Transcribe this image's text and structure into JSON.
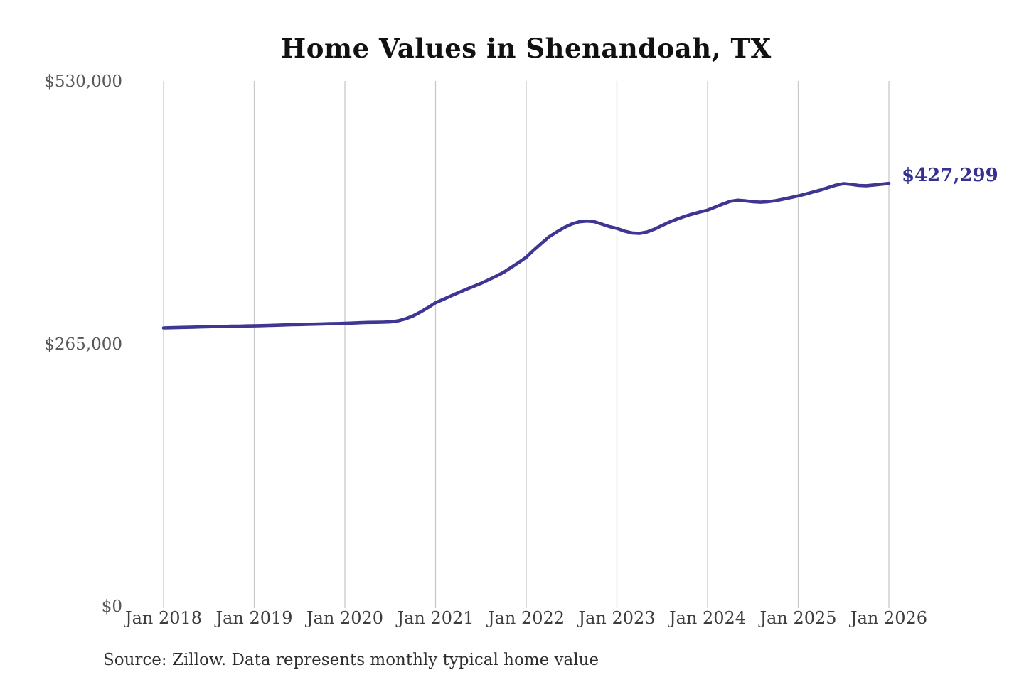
{
  "title": "Home Values in Shenandoah, TX",
  "source_note": "Source: Zillow. Data represents monthly typical home value",
  "end_label": "$427,299",
  "colors": {
    "background": "#ffffff",
    "line": "#3e3692",
    "end_label": "#363190",
    "grid": "#c9c9c9",
    "title_text": "#111111",
    "y_axis_text": "#575757",
    "x_axis_text": "#3d3d3d",
    "source_text": "#2e2e2e"
  },
  "chart_data": {
    "type": "line",
    "title": "Home Values in Shenandoah, TX",
    "xlabel": "",
    "ylabel": "",
    "ylim": [
      0,
      530000
    ],
    "grid": "vertical-only",
    "legend": "none",
    "x_tick_labels": [
      "Jan 2018",
      "Jan 2019",
      "Jan 2020",
      "Jan 2021",
      "Jan 2022",
      "Jan 2023",
      "Jan 2024",
      "Jan 2025",
      "Jan 2026"
    ],
    "y_ticks": [
      {
        "value": 0,
        "label": "$0"
      },
      {
        "value": 265000,
        "label": "$265,000"
      },
      {
        "value": 530000,
        "label": "$530,000"
      }
    ],
    "series_name": "Monthly typical home value",
    "x_start": "2018-01",
    "x_end": "2026-01",
    "x_step": "1 month",
    "values": [
      281500,
      281700,
      281900,
      282100,
      282300,
      282500,
      282700,
      282900,
      283000,
      283200,
      283300,
      283500,
      283600,
      283800,
      284000,
      284200,
      284500,
      284700,
      284900,
      285100,
      285300,
      285500,
      285700,
      285900,
      286100,
      286400,
      286700,
      287000,
      287100,
      287200,
      287500,
      288500,
      290500,
      293500,
      297500,
      302000,
      306900,
      310200,
      313600,
      317000,
      320200,
      323300,
      326400,
      330000,
      333600,
      337500,
      342500,
      347500,
      352800,
      360000,
      366800,
      373300,
      378200,
      382600,
      386300,
      388600,
      389300,
      388700,
      386200,
      383700,
      381900,
      379200,
      377300,
      376900,
      378300,
      381200,
      384900,
      388400,
      391400,
      394100,
      396400,
      398500,
      400300,
      403400,
      406400,
      409200,
      410400,
      409700,
      408800,
      408400,
      408900,
      409900,
      411400,
      413000,
      414700,
      416600,
      418700,
      420800,
      423200,
      425600,
      427100,
      426400,
      425300,
      425000,
      425700,
      426500,
      427299
    ],
    "final_value": 427299,
    "final_value_label": "$427,299"
  }
}
